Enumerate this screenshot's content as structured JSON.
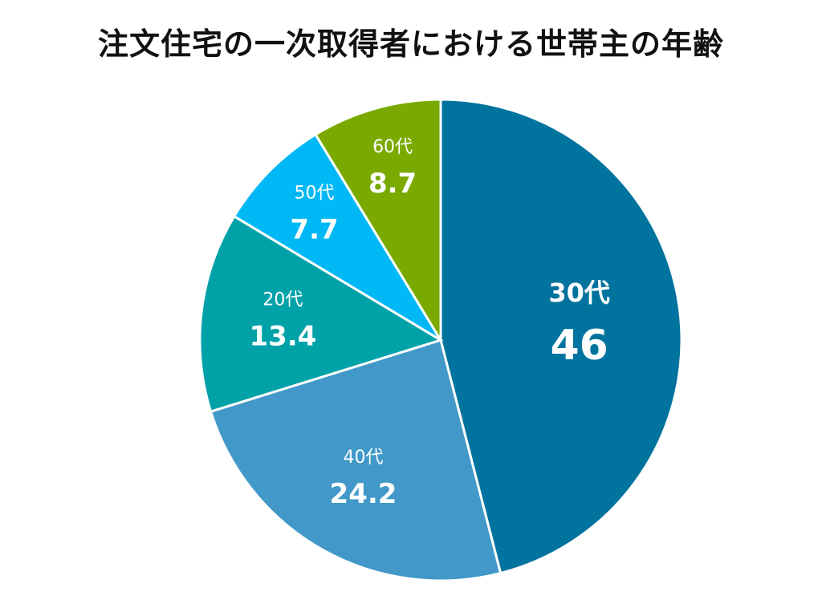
{
  "chart_data": {
    "type": "pie",
    "title": "注文住宅の一次取得者における世帯主の年齢",
    "slices": [
      {
        "label": "30代",
        "value": 46,
        "display": "46",
        "color": "#00739e"
      },
      {
        "label": "40代",
        "value": 24.2,
        "display": "24.2",
        "color": "#4299c9"
      },
      {
        "label": "20代",
        "value": 13.4,
        "display": "13.4",
        "color": "#00a2a8"
      },
      {
        "label": "50代",
        "value": 7.7,
        "display": "7.7",
        "color": "#00b8f5"
      },
      {
        "label": "60代",
        "value": 8.7,
        "display": "8.7",
        "color": "#7aaa00"
      }
    ]
  }
}
